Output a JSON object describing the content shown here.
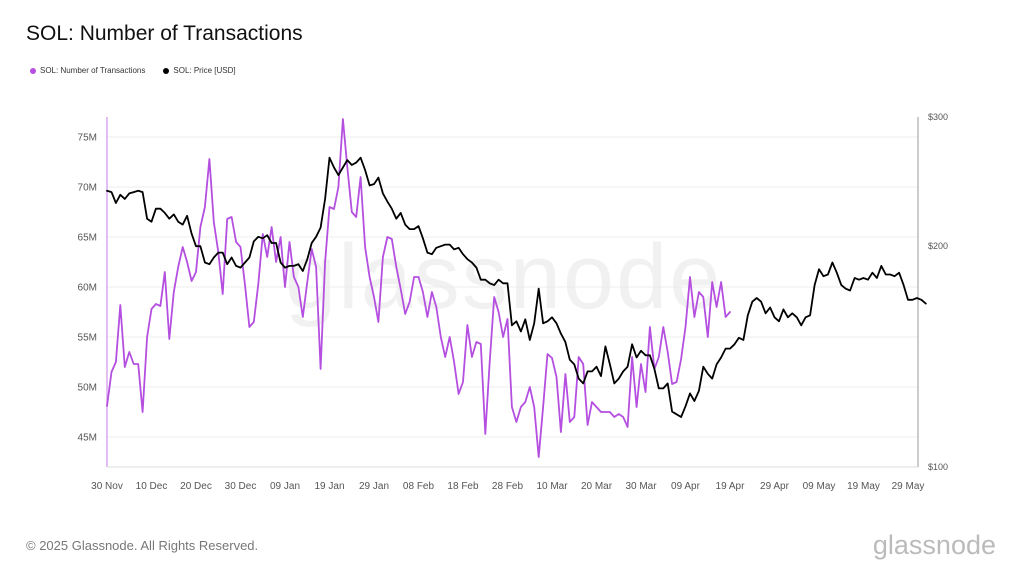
{
  "chart_data": {
    "type": "line",
    "title": "SOL: Number of Transactions",
    "legend": [
      {
        "label": "SOL: Number of Transactions",
        "color": "#b44fe0"
      },
      {
        "label": "SOL: Price [USD]",
        "color": "#000000"
      }
    ],
    "legend_position": "top-left",
    "x_ticks": [
      "30 Nov",
      "10 Dec",
      "20 Dec",
      "30 Dec",
      "09 Jan",
      "19 Jan",
      "29 Jan",
      "08 Feb",
      "18 Feb",
      "28 Feb",
      "10 Mar",
      "20 Mar",
      "30 Mar",
      "09 Apr",
      "19 Apr",
      "29 Apr",
      "09 May",
      "19 May",
      "29 May"
    ],
    "x_start": "2024-11-30",
    "y_left": {
      "label": "",
      "ticks": [
        "45M",
        "50M",
        "55M",
        "60M",
        "65M",
        "70M",
        "75M"
      ],
      "ylim": [
        42000000,
        77000000
      ]
    },
    "y_right": {
      "label": "",
      "scale": "log",
      "ticks": [
        "$100",
        "$200",
        "$300"
      ],
      "ylim": [
        100,
        300
      ]
    },
    "grid": "horizontal",
    "series": [
      {
        "name": "SOL: Number of Transactions",
        "axis": "left",
        "color": "#b44fe0",
        "values": [
          48.1,
          51.5,
          52.5,
          58.2,
          52.0,
          53.5,
          52.3,
          52.3,
          47.5,
          55.0,
          57.8,
          58.3,
          58.1,
          61.5,
          54.8,
          59.5,
          62.0,
          64.0,
          62.5,
          60.6,
          61.5,
          66.0,
          68.0,
          72.8,
          66.5,
          63.5,
          59.3,
          66.8,
          67.0,
          64.5,
          64.0,
          60.2,
          56.0,
          56.5,
          60.3,
          65.3,
          63.0,
          66.0,
          62.5,
          65.0,
          60.0,
          64.5,
          61.0,
          60.0,
          57.0,
          60.5,
          63.8,
          62.0,
          51.8,
          62.5,
          68.0,
          67.8,
          70.0,
          76.8,
          72.0,
          67.5,
          67.0,
          71.0,
          64.0,
          61.0,
          59.0,
          56.5,
          63.0,
          65.0,
          64.8,
          62.0,
          59.8,
          57.3,
          58.5,
          61.0,
          61.0,
          59.5,
          57.0,
          59.5,
          58.0,
          55.0,
          53.0,
          55.0,
          52.5,
          49.3,
          50.5,
          56.2,
          53.0,
          54.5,
          54.3,
          45.3,
          52.5,
          59.0,
          57.5,
          55.0,
          56.8,
          48.0,
          46.5,
          48.0,
          48.5,
          50.0,
          48.0,
          43.0,
          48.0,
          53.3,
          52.9,
          51.0,
          45.5,
          51.3,
          46.5,
          47.0,
          53.0,
          52.3,
          46.2,
          48.5,
          48.0,
          47.5,
          47.5,
          47.5,
          47.0,
          47.3,
          47.0,
          46.0,
          53.0,
          48.0,
          52.3,
          49.5,
          56.0,
          51.8,
          53.0,
          56.0,
          53.5,
          50.3,
          50.5,
          52.8,
          56.0,
          61.0,
          57.0,
          59.5,
          59.0,
          55.0,
          60.5,
          58.0,
          60.5,
          57.0,
          57.5
        ]
      },
      {
        "name": "SOL: Price [USD]",
        "axis": "right",
        "color": "#000000",
        "values": [
          238,
          237,
          229,
          235,
          232,
          236,
          237,
          238,
          237,
          218,
          216,
          225,
          225,
          222,
          218,
          221,
          216,
          214,
          220,
          208,
          200,
          200,
          190,
          189,
          193,
          196,
          196,
          189,
          193,
          188,
          187,
          190,
          193,
          203,
          206,
          205,
          207,
          202,
          202,
          190,
          187,
          188,
          188,
          189,
          185,
          192,
          202,
          206,
          212,
          232,
          264,
          256,
          250,
          256,
          262,
          258,
          260,
          264,
          254,
          242,
          243,
          248,
          236,
          230,
          225,
          218,
          222,
          214,
          211,
          211,
          213,
          205,
          196,
          195,
          199,
          200,
          201,
          201,
          198,
          199,
          195,
          192,
          190,
          187,
          180,
          180,
          178,
          177,
          180,
          178,
          178,
          156,
          158,
          153,
          159,
          149,
          157,
          175,
          157,
          158,
          160,
          157,
          152,
          148,
          140,
          138,
          132,
          130,
          135,
          135,
          137,
          133,
          146,
          138,
          130,
          132,
          135,
          137,
          147,
          141,
          144,
          142,
          142,
          136,
          128,
          128,
          130,
          119,
          118,
          117,
          121,
          126,
          123,
          127,
          137,
          134,
          132,
          138,
          141,
          145,
          145,
          147,
          150,
          149,
          161,
          168,
          170,
          168,
          162,
          165,
          160,
          158,
          164,
          160,
          162,
          160,
          156,
          160,
          161,
          177,
          186,
          182,
          183,
          190,
          184,
          177,
          175,
          174,
          181,
          180,
          181,
          180,
          184,
          181,
          188,
          183,
          183,
          182,
          184,
          177,
          169,
          169,
          170,
          169,
          167
        ]
      }
    ]
  },
  "footer": "© 2025 Glassnode. All Rights Reserved.",
  "brand": "glassnode",
  "watermark": "glassnode"
}
